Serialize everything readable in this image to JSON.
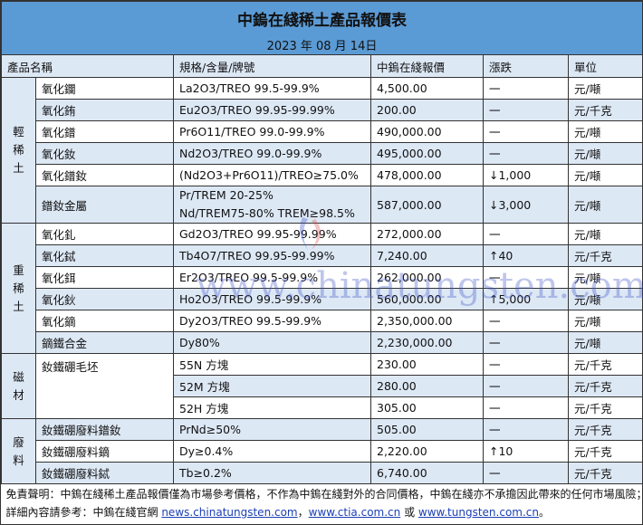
{
  "title": "中鎢在綫稀土產品報價表",
  "date": "2023 年 08 月 14日",
  "headers": [
    "產品名稱",
    "規格/含量/牌號",
    "中鎢在綫報價",
    "漲跌",
    "單位"
  ],
  "groups": [
    "輕\n稀\n土",
    "重\n稀\n土",
    "磁\n材",
    "廢\n料"
  ],
  "light": [
    {
      "name": "氧化鑭",
      "spec": "La2O3/TREO 99.5-99.9%",
      "price": "4,500.00",
      "change": "一",
      "unit": "元/噸"
    },
    {
      "name": "氧化銪",
      "spec": "Eu2O3/TREO 99.95-99.99%",
      "price": "200.00",
      "change": "一",
      "unit": "元/千克"
    },
    {
      "name": "氧化鐠",
      "spec": "Pr6O11/TREO 99.0-99.9%",
      "price": "490,000.00",
      "change": "一",
      "unit": "元/噸"
    },
    {
      "name": "氧化釹",
      "spec": "Nd2O3/TREO 99.0-99.9%",
      "price": "495,000.00",
      "change": "一",
      "unit": "元/噸"
    },
    {
      "name": "氧化鐠釹",
      "spec": "(Nd2O3+Pr6O11)/TREO≥75.0%",
      "price": "478,000.00",
      "change": "↓1,000",
      "unit": "元/噸"
    },
    {
      "name": "鐠釹金屬",
      "spec": "Pr/TREM 20-25%",
      "spec2": "Nd/TREM75-80% TREM≥98.5%",
      "price": "587,000.00",
      "change": "↓3,000",
      "unit": "元/噸"
    }
  ],
  "heavy": [
    {
      "name": "氧化釓",
      "spec": "Gd2O3/TREO 99.95-99.99%",
      "price": "272,000.00",
      "change": "一",
      "unit": "元/噸"
    },
    {
      "name": "氧化鋱",
      "spec": "Tb4O7/TREO 99.95-99.99%",
      "price": "7,240.00",
      "change": "↑40",
      "unit": "元/千克"
    },
    {
      "name": "氧化鉺",
      "spec": "Er2O3/TREO 99.5-99.9%",
      "price": "262,000.00",
      "change": "一",
      "unit": "元/噸"
    },
    {
      "name": "氧化鈥",
      "spec": "Ho2O3/TREO 99.5-99.9%",
      "price": "560,000.00",
      "change": "↑5,000",
      "unit": "元/噸"
    },
    {
      "name": "氧化鏑",
      "spec": "Dy2O3/TREO 99.5-99.9%",
      "price": "2,350,000.00",
      "change": "一",
      "unit": "元/噸"
    },
    {
      "name": "鏑鐵合金",
      "spec": "Dy80%",
      "price": "2,230,000.00",
      "change": "一",
      "unit": "元/噸"
    }
  ],
  "magnet": {
    "name": "釹鐵硼毛坯",
    "rows": [
      {
        "spec": "55N  方塊",
        "price": "230.00",
        "change": "一",
        "unit": "元/千克"
      },
      {
        "spec": "52M  方塊",
        "price": "280.00",
        "change": "一",
        "unit": "元/千克"
      },
      {
        "spec": "52H  方塊",
        "price": "305.00",
        "change": "一",
        "unit": "元/千克"
      }
    ]
  },
  "scrap": [
    {
      "name": "釹鐵硼廢料鐠釹",
      "spec": "PrNd≥50%",
      "price": "505.00",
      "change": "一",
      "unit": "元/千克"
    },
    {
      "name": "釹鐵硼廢料鏑",
      "spec": "Dy≥0.4%",
      "price": "2,220.00",
      "change": "↑10",
      "unit": "元/千克"
    },
    {
      "name": "釹鐵硼廢料鋱",
      "spec": "Tb≥0.2%",
      "price": "6,740.00",
      "change": "一",
      "unit": "元/千克"
    }
  ],
  "footer": {
    "disclaimer": "免責聲明：中鎢在綫稀土產品報價僅為市場參考價格，不作為中鎢在綫對外的合同價格，中鎢在綫亦不承擔因此帶來的任何市場風險；",
    "ref_prefix": "詳細內容請參考：中鎢在綫官網 ",
    "link1": "news.chinatungsten.com",
    "sep": "，",
    "link2": "www.ctia.com.cn",
    "or": " 或 ",
    "link3": "www.tungsten.com.cn",
    "end": "。"
  },
  "watermark": "www.chinatungsten.com"
}
